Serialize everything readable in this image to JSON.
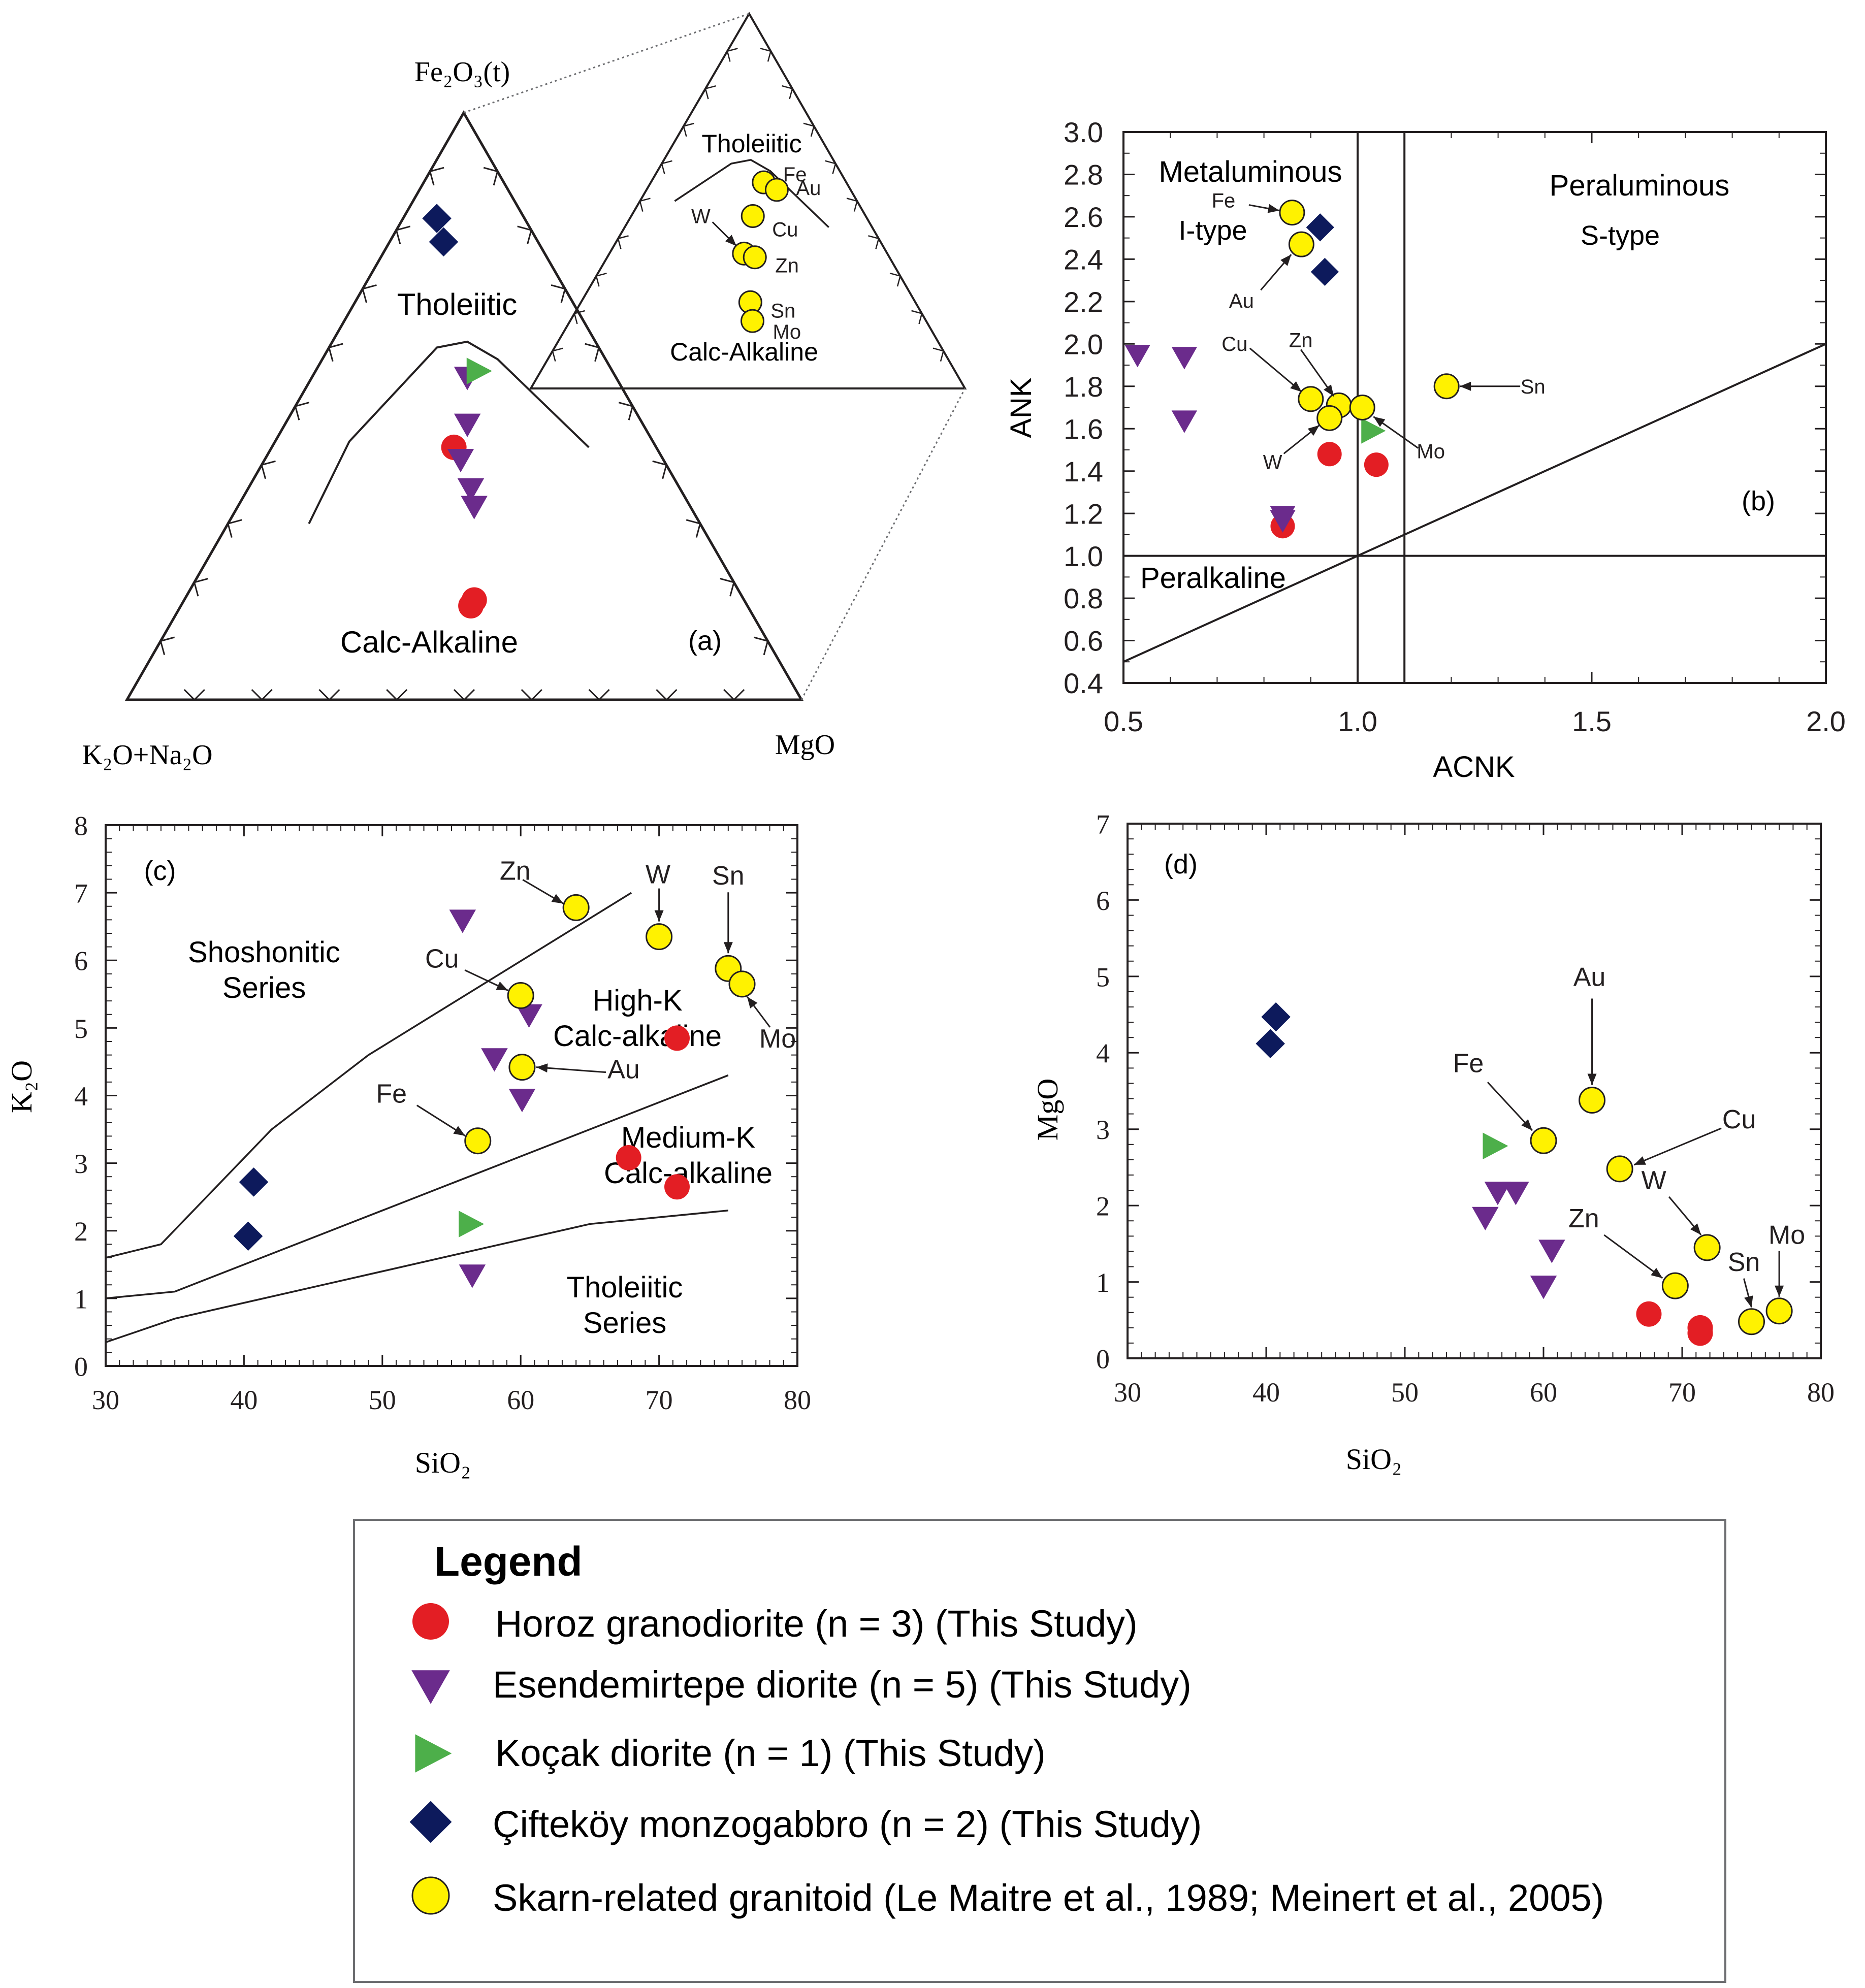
{
  "colors": {
    "horoz": "#e31e24",
    "esendemirtepe": "#6b2b8c",
    "kocak": "#4daf4a",
    "ciftekoy": "#0d1a5c",
    "skarn": "#fff200",
    "line": "#231f20"
  },
  "chart_data": [
    {
      "id": "a",
      "type": "ternary",
      "panel_label": "(a)",
      "apex_top": "Fe₂O₃(t)",
      "apex_left": "K₂O+Na₂O",
      "apex_right": "MgO",
      "fields": [
        "Tholeiitic",
        "Calc-Alkaline"
      ],
      "inset_fields": [
        "Tholeiitic",
        "Calc-Alkaline"
      ],
      "ternary_coordinates_note": "[K2O+Na2O, Fe2O3(t), MgO] fractions",
      "series": [
        {
          "name": "Horoz granodiorite",
          "marker": "circle",
          "points": [
            [
              0.3,
              0.43,
              0.27
            ],
            [
              0.4,
              0.17,
              0.43
            ],
            [
              0.41,
              0.16,
              0.43
            ]
          ]
        },
        {
          "name": "Esendemirtepe diorite",
          "marker": "triangle-down",
          "points": [
            [
              0.26,
              0.47,
              0.27
            ],
            [
              0.3,
              0.41,
              0.29
            ],
            [
              0.31,
              0.36,
              0.33
            ],
            [
              0.32,
              0.33,
              0.35
            ],
            [
              0.22,
              0.55,
              0.23
            ]
          ]
        },
        {
          "name": "Koçak diorite",
          "marker": "triangle-right",
          "points": [
            [
              0.2,
              0.56,
              0.24
            ]
          ]
        },
        {
          "name": "Çifteköy monzogabbro",
          "marker": "diamond",
          "points": [
            [
              0.13,
              0.82,
              0.05
            ],
            [
              0.14,
              0.78,
              0.08
            ]
          ]
        }
      ],
      "inset_points": [
        {
          "label": "Fe",
          "ternary": [
            0.19,
            0.55,
            0.26
          ]
        },
        {
          "label": "Au",
          "ternary": [
            0.17,
            0.53,
            0.3
          ]
        },
        {
          "label": "Cu",
          "ternary": [
            0.26,
            0.46,
            0.28
          ]
        },
        {
          "label": "W",
          "ternary": [
            0.33,
            0.36,
            0.31
          ]
        },
        {
          "label": "Zn",
          "ternary": [
            0.31,
            0.35,
            0.34
          ]
        },
        {
          "label": "Sn",
          "ternary": [
            0.38,
            0.23,
            0.39
          ]
        },
        {
          "label": "Mo",
          "ternary": [
            0.4,
            0.18,
            0.42
          ]
        }
      ],
      "boundary_curve": [
        [
          0.58,
          0.3,
          0.12
        ],
        [
          0.45,
          0.44,
          0.11
        ],
        [
          0.24,
          0.6,
          0.16
        ],
        [
          0.19,
          0.61,
          0.2
        ],
        [
          0.16,
          0.58,
          0.26
        ],
        [
          0.1,
          0.43,
          0.47
        ]
      ],
      "boundary_curve_inset": [
        [
          0.42,
          0.5,
          0.08
        ],
        [
          0.24,
          0.6,
          0.16
        ],
        [
          0.19,
          0.61,
          0.2
        ],
        [
          0.16,
          0.58,
          0.26
        ],
        [
          0.1,
          0.43,
          0.47
        ]
      ]
    },
    {
      "id": "b",
      "type": "scatter",
      "panel_label": "(b)",
      "xlabel": "ACNK",
      "ylabel": "ANK",
      "xlim": [
        0.5,
        2.0
      ],
      "ylim": [
        0.4,
        3.0
      ],
      "xticks": [
        "0.5",
        "1.0",
        "1.5",
        "2.0"
      ],
      "yticks": [
        "0.4",
        "0.6",
        "0.8",
        "1.0",
        "1.2",
        "1.4",
        "1.6",
        "1.8",
        "2.0",
        "2.2",
        "2.4",
        "2.6",
        "2.8",
        "3.0"
      ],
      "fields": [
        "Metaluminous",
        "I-type",
        "Peraluminous",
        "S-type",
        "Peralkaline"
      ],
      "vertical_lines": [
        1.0,
        1.1
      ],
      "horizontal_lines": [
        1.0
      ],
      "diagonal_line": [
        [
          0.5,
          0.5
        ],
        [
          2.0,
          2.0
        ]
      ],
      "series": [
        {
          "name": "Horoz granodiorite",
          "marker": "circle",
          "points": [
            [
              0.94,
              1.48
            ],
            [
              1.04,
              1.43
            ],
            [
              0.84,
              1.14
            ]
          ]
        },
        {
          "name": "Esendemirtepe diorite",
          "marker": "triangle-down",
          "points": [
            [
              0.53,
              1.95
            ],
            [
              0.63,
              1.94
            ],
            [
              0.63,
              1.64
            ],
            [
              0.84,
              1.19
            ],
            [
              0.84,
              1.17
            ]
          ]
        },
        {
          "name": "Koçak diorite",
          "marker": "triangle-right",
          "points": [
            [
              1.03,
              1.59
            ]
          ]
        },
        {
          "name": "Çifteköy monzogabbro",
          "marker": "diamond",
          "points": [
            [
              0.92,
              2.55
            ],
            [
              0.93,
              2.34
            ]
          ]
        },
        {
          "name": "Skarn-related granitoid",
          "marker": "circle",
          "labels": [
            "Fe",
            "Au",
            "Cu",
            "Zn",
            "W",
            "Mo",
            "Sn"
          ],
          "points": [
            [
              0.86,
              2.62
            ],
            [
              0.88,
              2.47
            ],
            [
              0.9,
              1.74
            ],
            [
              0.96,
              1.71
            ],
            [
              0.94,
              1.65
            ],
            [
              1.01,
              1.7
            ],
            [
              1.19,
              1.8
            ]
          ]
        }
      ]
    },
    {
      "id": "c",
      "type": "scatter",
      "panel_label": "(c)",
      "xlabel": "SiO₂",
      "ylabel": "K₂O",
      "xlim": [
        30,
        80
      ],
      "ylim": [
        0,
        8
      ],
      "xticks": [
        "30",
        "40",
        "50",
        "60",
        "70",
        "80"
      ],
      "yticks": [
        "0",
        "1",
        "2",
        "3",
        "4",
        "5",
        "6",
        "7",
        "8"
      ],
      "field_labels": [
        "Shoshonitic",
        "Series",
        "High-K",
        "Calc-alkaline",
        "Medium-K",
        "Calc-alkaline",
        "Tholeiitic",
        "Series"
      ],
      "boundary_lines": [
        [
          [
            30,
            1.6
          ],
          [
            34,
            1.8
          ],
          [
            42,
            3.5
          ],
          [
            49,
            4.6
          ],
          [
            68,
            7.0
          ]
        ],
        [
          [
            30,
            1.0
          ],
          [
            35,
            1.1
          ],
          [
            50,
            2.3
          ],
          [
            75,
            4.3
          ]
        ],
        [
          [
            30,
            0.35
          ],
          [
            35,
            0.7
          ],
          [
            50,
            1.4
          ],
          [
            65,
            2.1
          ],
          [
            75,
            2.3
          ]
        ]
      ],
      "series": [
        {
          "name": "Horoz granodiorite",
          "marker": "circle",
          "points": [
            [
              71.3,
              4.85
            ],
            [
              67.8,
              3.08
            ],
            [
              71.3,
              2.65
            ]
          ]
        },
        {
          "name": "Esendemirtepe diorite",
          "marker": "triangle-down",
          "points": [
            [
              55.8,
              6.6
            ],
            [
              60.6,
              5.2
            ],
            [
              58.1,
              4.55
            ],
            [
              60.1,
              3.95
            ],
            [
              56.5,
              1.35
            ]
          ]
        },
        {
          "name": "Koçak diorite",
          "marker": "triangle-right",
          "points": [
            [
              56.3,
              2.1
            ]
          ]
        },
        {
          "name": "Çifteköy monzogabbro",
          "marker": "diamond",
          "points": [
            [
              40.7,
              2.72
            ],
            [
              40.3,
              1.92
            ]
          ]
        },
        {
          "name": "Skarn-related granitoid",
          "marker": "circle",
          "labels": [
            "Zn",
            "W",
            "Sn",
            "Mo",
            "Cu",
            "Au",
            "Fe"
          ],
          "points": [
            [
              64.0,
              6.78
            ],
            [
              70.0,
              6.35
            ],
            [
              75.0,
              5.88
            ],
            [
              76.0,
              5.65
            ],
            [
              60.0,
              5.48
            ],
            [
              60.1,
              4.42
            ],
            [
              56.9,
              3.33
            ]
          ]
        }
      ]
    },
    {
      "id": "d",
      "type": "scatter",
      "panel_label": "(d)",
      "xlabel": "SiO₂",
      "ylabel": "MgO",
      "xlim": [
        30,
        80
      ],
      "ylim": [
        0,
        7
      ],
      "xticks": [
        "30",
        "40",
        "50",
        "60",
        "70",
        "80"
      ],
      "yticks": [
        "0",
        "1",
        "2",
        "3",
        "4",
        "5",
        "6",
        "7"
      ],
      "series": [
        {
          "name": "Horoz granodiorite",
          "marker": "circle",
          "points": [
            [
              67.6,
              0.58
            ],
            [
              71.3,
              0.4
            ],
            [
              71.3,
              0.33
            ]
          ]
        },
        {
          "name": "Esendemirtepe diorite",
          "marker": "triangle-down",
          "points": [
            [
              56.7,
              2.18
            ],
            [
              58.0,
              2.18
            ],
            [
              55.8,
              1.85
            ],
            [
              60.6,
              1.42
            ],
            [
              60.0,
              0.95
            ]
          ]
        },
        {
          "name": "Koçak diorite",
          "marker": "triangle-right",
          "points": [
            [
              56.4,
              2.78
            ]
          ]
        },
        {
          "name": "Çifteköy monzogabbro",
          "marker": "diamond",
          "points": [
            [
              40.7,
              4.47
            ],
            [
              40.3,
              4.12
            ]
          ]
        },
        {
          "name": "Skarn-related granitoid",
          "marker": "circle",
          "labels": [
            "Au",
            "Fe",
            "Cu",
            "W",
            "Zn",
            "Sn",
            "Mo"
          ],
          "points": [
            [
              63.5,
              3.38
            ],
            [
              60.0,
              2.85
            ],
            [
              65.5,
              2.48
            ],
            [
              71.8,
              1.45
            ],
            [
              69.5,
              0.95
            ],
            [
              75.0,
              0.48
            ],
            [
              77.0,
              0.62
            ]
          ]
        }
      ]
    }
  ],
  "legend": {
    "title": "Legend",
    "items": [
      {
        "label": "Horoz granodiorite (n = 3) (This Study)",
        "marker": "circle",
        "color_key": "horoz"
      },
      {
        "label": "Esendemirtepe diorite (n = 5) (This Study)",
        "marker": "triangle-down",
        "color_key": "esendemirtepe"
      },
      {
        "label": "Koçak diorite (n = 1) (This Study)",
        "marker": "triangle-right",
        "color_key": "kocak"
      },
      {
        "label": "Çifteköy monzogabbro (n = 2) (This Study)",
        "marker": "diamond",
        "color_key": "ciftekoy"
      },
      {
        "label": "Skarn-related granitoid (Le Maitre et al., 1989; Meinert et al., 2005)",
        "marker": "circle",
        "color_key": "skarn"
      }
    ]
  }
}
